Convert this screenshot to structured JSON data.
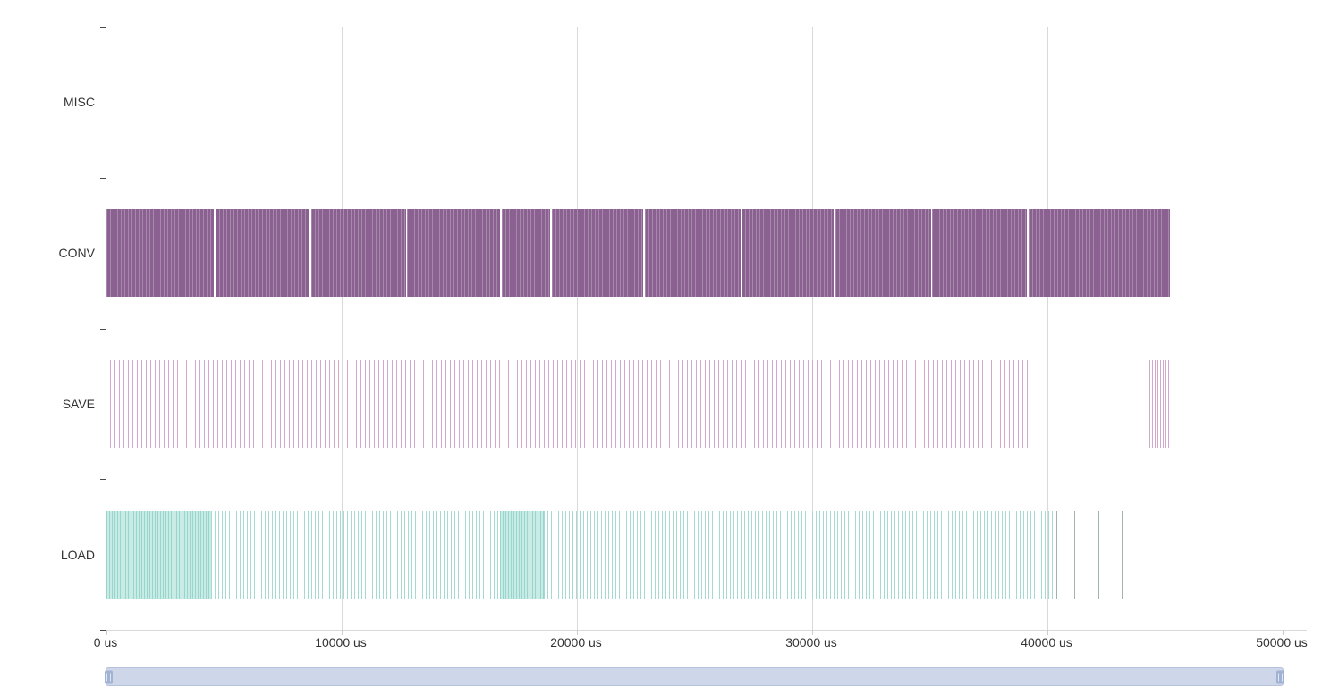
{
  "chart_data": {
    "type": "bar",
    "variant": "timeline-trace",
    "title": "",
    "x_axis": {
      "min": 0,
      "max": 50000,
      "unit": "us",
      "ticks": [
        0,
        10000,
        20000,
        30000,
        40000,
        50000
      ],
      "tick_labels": [
        "0 us",
        "10000 us",
        "20000 us",
        "30000 us",
        "40000 us",
        "50000 us"
      ],
      "gridline_ticks": [
        10000,
        20000,
        30000,
        40000
      ]
    },
    "y_categories_top_to_bottom": [
      "MISC",
      "CONV",
      "SAVE",
      "LOAD"
    ],
    "rows": [
      {
        "label": "MISC",
        "colors": {},
        "segments": []
      },
      {
        "label": "CONV",
        "colors": {
          "fill": "#8a6190",
          "stripe": "rgba(255,255,255,0.25)",
          "stripe_period": 4
        },
        "segments": [
          {
            "start": 0,
            "end": 4550,
            "style": "solid"
          },
          {
            "start": 4620,
            "end": 8650,
            "style": "solid"
          },
          {
            "start": 8720,
            "end": 12720,
            "style": "solid"
          },
          {
            "start": 12790,
            "end": 16720,
            "style": "solid"
          },
          {
            "start": 16790,
            "end": 18850,
            "style": "solid"
          },
          {
            "start": 18920,
            "end": 22820,
            "style": "solid"
          },
          {
            "start": 22890,
            "end": 26940,
            "style": "solid"
          },
          {
            "start": 27010,
            "end": 30930,
            "style": "solid"
          },
          {
            "start": 31000,
            "end": 35040,
            "style": "solid"
          },
          {
            "start": 35110,
            "end": 39140,
            "style": "solid"
          },
          {
            "start": 39210,
            "end": 45200,
            "style": "solid"
          }
        ]
      },
      {
        "label": "SAVE",
        "colors": {
          "tick": "#d2a8ce"
        },
        "segments": [
          {
            "start": 150,
            "end": 39150,
            "style": "ticks",
            "spacing_px": 5
          },
          {
            "start": 44350,
            "end": 45250,
            "style": "ticks",
            "spacing_px": 3
          }
        ]
      },
      {
        "label": "LOAD",
        "colors": {
          "fill": "#c9ebe5",
          "stripe": "#98d5cc",
          "stripe_period": 3,
          "tick": "#a4dad2",
          "line": "#9fb3b0"
        },
        "segments": [
          {
            "start": 0,
            "end": 4450,
            "style": "solid"
          },
          {
            "start": 4450,
            "end": 16730,
            "style": "ticks",
            "spacing_px": 4
          },
          {
            "start": 16730,
            "end": 18590,
            "style": "solid"
          },
          {
            "start": 18590,
            "end": 40300,
            "style": "ticks",
            "spacing_px": 4
          },
          {
            "start": 40380,
            "end": 40420,
            "style": "line"
          },
          {
            "start": 41130,
            "end": 41170,
            "style": "line"
          },
          {
            "start": 42150,
            "end": 42190,
            "style": "line"
          },
          {
            "start": 43140,
            "end": 43180,
            "style": "line"
          }
        ]
      }
    ],
    "grid": true,
    "legend": null
  },
  "axis_colors": {
    "axis_line": "#4a4a4a",
    "gridline": "#d9d9d9",
    "label": "#333333"
  },
  "scrollbar": {
    "track_color": "#cdd7e9",
    "border_color": "#b6c2dc",
    "handle_color": "#a2b2d2"
  }
}
